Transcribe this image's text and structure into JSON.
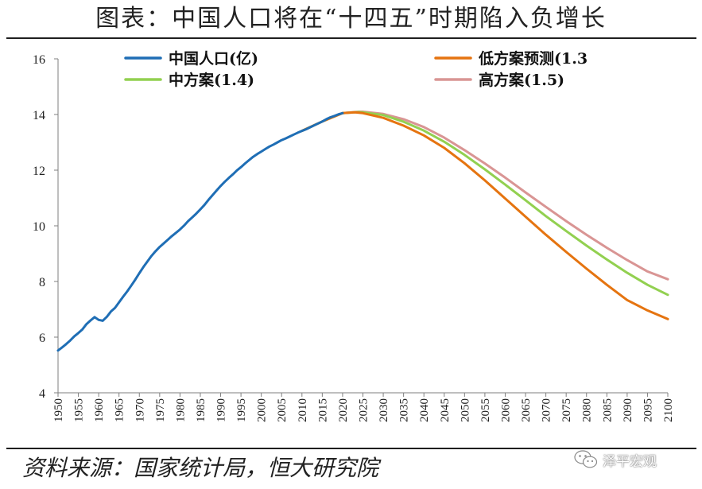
{
  "title": "图表：中国人口将在“十四五”时期陷入负增长",
  "source": "资料来源：国家统计局，恒大研究院",
  "watermark": {
    "text": "泽平宏观",
    "icon": "wechat-icon"
  },
  "chart_data": {
    "type": "line",
    "ylim": [
      4,
      16
    ],
    "xlim": [
      1950,
      2100
    ],
    "yticks": [
      4,
      6,
      8,
      10,
      12,
      14,
      16
    ],
    "xticks": [
      1950,
      1955,
      1960,
      1965,
      1970,
      1975,
      1980,
      1985,
      1990,
      1995,
      2000,
      2005,
      2010,
      2015,
      2020,
      2025,
      2030,
      2035,
      2040,
      2045,
      2050,
      2055,
      2060,
      2065,
      2070,
      2075,
      2080,
      2085,
      2090,
      2095,
      2100
    ],
    "grid": false,
    "legend_placement": "top",
    "series": [
      {
        "name": "中国人口(亿)",
        "color": "#1f6eb5",
        "x": [
          1950,
          1951,
          1952,
          1953,
          1954,
          1955,
          1956,
          1957,
          1958,
          1959,
          1960,
          1961,
          1962,
          1963,
          1964,
          1965,
          1966,
          1967,
          1968,
          1969,
          1970,
          1971,
          1972,
          1973,
          1974,
          1975,
          1976,
          1977,
          1978,
          1979,
          1980,
          1981,
          1982,
          1983,
          1984,
          1985,
          1986,
          1987,
          1988,
          1989,
          1990,
          1991,
          1992,
          1993,
          1994,
          1995,
          1996,
          1997,
          1998,
          1999,
          2000,
          2001,
          2002,
          2003,
          2004,
          2005,
          2006,
          2007,
          2008,
          2009,
          2010,
          2011,
          2012,
          2013,
          2014,
          2015,
          2016,
          2017,
          2018,
          2019,
          2020
        ],
        "y": [
          5.52,
          5.63,
          5.75,
          5.88,
          6.03,
          6.15,
          6.28,
          6.47,
          6.6,
          6.72,
          6.62,
          6.59,
          6.73,
          6.92,
          7.05,
          7.25,
          7.45,
          7.64,
          7.85,
          8.07,
          8.3,
          8.52,
          8.72,
          8.92,
          9.09,
          9.24,
          9.37,
          9.5,
          9.63,
          9.75,
          9.87,
          10.01,
          10.17,
          10.3,
          10.44,
          10.59,
          10.75,
          10.93,
          11.1,
          11.27,
          11.43,
          11.58,
          11.72,
          11.85,
          11.99,
          12.11,
          12.24,
          12.36,
          12.48,
          12.58,
          12.67,
          12.76,
          12.85,
          12.92,
          13.0,
          13.08,
          13.14,
          13.21,
          13.28,
          13.35,
          13.41,
          13.47,
          13.54,
          13.61,
          13.68,
          13.75,
          13.83,
          13.9,
          13.95,
          14.01,
          14.05
        ]
      },
      {
        "name": "低方案预测(1.3",
        "color": "#e57410",
        "x": [
          2010,
          2015,
          2020,
          2023,
          2025,
          2030,
          2035,
          2040,
          2045,
          2050,
          2055,
          2060,
          2065,
          2070,
          2075,
          2080,
          2085,
          2090,
          2095,
          2100
        ],
        "y": [
          13.41,
          13.75,
          14.05,
          14.08,
          14.05,
          13.88,
          13.6,
          13.25,
          12.8,
          12.25,
          11.63,
          10.98,
          10.33,
          9.68,
          9.06,
          8.46,
          7.88,
          7.33,
          6.96,
          6.65
        ]
      },
      {
        "name": "中方案(1.4)",
        "color": "#92d050",
        "x": [
          2010,
          2015,
          2020,
          2024,
          2025,
          2030,
          2035,
          2040,
          2045,
          2050,
          2055,
          2060,
          2065,
          2070,
          2075,
          2080,
          2085,
          2090,
          2095,
          2100
        ],
        "y": [
          13.41,
          13.75,
          14.05,
          14.09,
          14.08,
          13.98,
          13.74,
          13.42,
          13.02,
          12.55,
          12.03,
          11.48,
          10.92,
          10.35,
          9.81,
          9.29,
          8.79,
          8.31,
          7.88,
          7.52
        ]
      },
      {
        "name": "高方案(1.5)",
        "color": "#d99594",
        "x": [
          2010,
          2015,
          2020,
          2024,
          2025,
          2030,
          2035,
          2040,
          2045,
          2050,
          2055,
          2060,
          2065,
          2070,
          2075,
          2080,
          2085,
          2090,
          2095,
          2100
        ],
        "y": [
          13.41,
          13.75,
          14.05,
          14.1,
          14.1,
          14.02,
          13.83,
          13.55,
          13.17,
          12.72,
          12.24,
          11.73,
          11.2,
          10.68,
          10.17,
          9.68,
          9.21,
          8.77,
          8.36,
          8.08
        ]
      }
    ]
  }
}
